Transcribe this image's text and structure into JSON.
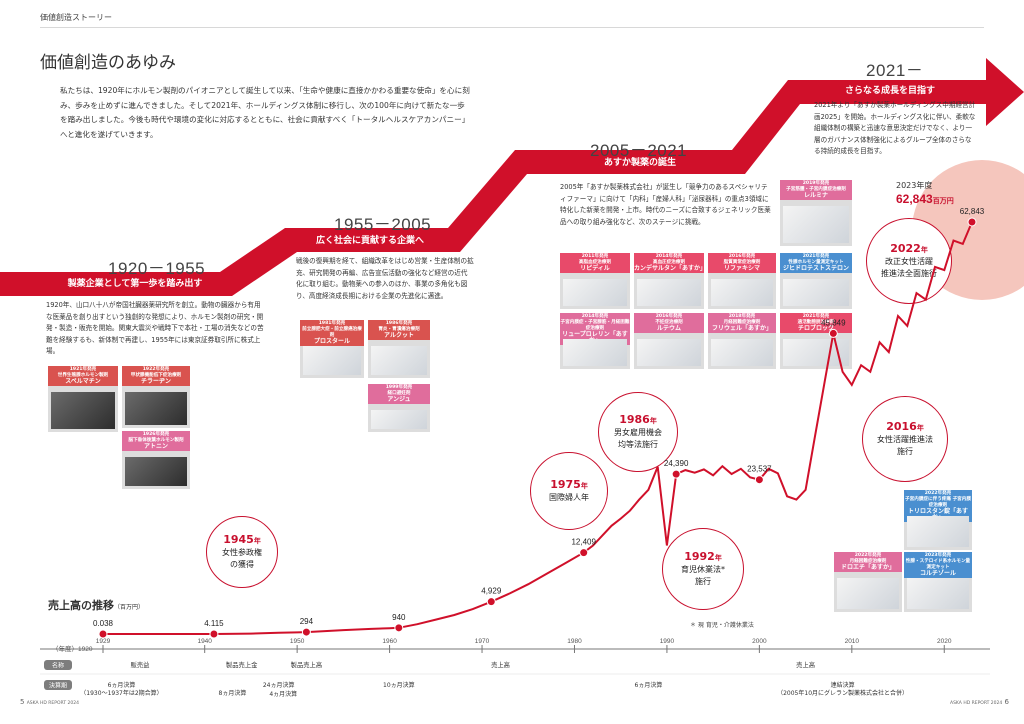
{
  "header": {
    "section": "価値創造ストーリー"
  },
  "title": "価値創造のあゆみ",
  "intro": "私たちは、1920年にホルモン製剤のパイオニアとして誕生して以来、「生命や健康に直接かかわる重要な使命」を心に刻み、歩みを止めずに進んできました。そして2021年、ホールディングス体制に移行し、次の100年に向けて新たな一歩を踏み出しました。今後も時代や環境の変化に対応するとともに、社会に貢献すべく「トータルヘルスケアカンパニー」へと進化を遂げていきます。",
  "eras": [
    {
      "years": "1920－1955",
      "label": "製薬企業として第一歩を踏み出す",
      "text": "1920年、山口八十八が帝国社臓器薬研究所を創立。動物の臓器から有用な医薬品を創り出すという独創的な発想により、ホルモン製剤の研究・開発・製造・販売を開始。関東大震災や戦時下で本社・工場の消失などの苦難を経験するも、新体制で再建し、1955年には東京証券取引所に株式上場。"
    },
    {
      "years": "1955－2005",
      "label": "広く社会に貢献する企業へ",
      "text": "戦後の復興期を経て、組織改革をはじめ営業・生産体制の拡充、研究開発の再編、広告宣伝活動の強化など経営の近代化に取り組む。動物薬への参入のほか、事業の多角化も図り、高度経済成長期における企業の先進化に邁進。"
    },
    {
      "years": "2005－2021",
      "label": "あすか製薬の誕生",
      "text": "2005年「あすか製薬株式会社」が誕生し「競争力のあるスペシャリティファーマ」に向けて「内科」「産婦人科」「泌尿器科」の重点3領域に特化した新薬を開発・上市。時代のニーズに合致するジェネリック医薬品への取り組み強化など、次のステージに挑戦。"
    },
    {
      "years": "2021－",
      "label": "さらなる成長を目指す",
      "text": "2021年より「あすか製薬ホールディングス中期経営計画2025」を開始。ホールディングス化に伴い、柔軟な組織体制の構築と迅速な意思決定だけでなく、より一層のガバナンス体制強化によるグループ全体のさらなる持続的成長を目指す。"
    }
  ],
  "products": [
    {
      "year": "1921年発売",
      "line": "世界生殖腺ホルモン製剤",
      "name": "スペルマチン",
      "color": "#d9534f"
    },
    {
      "year": "1922年発売",
      "line": "甲状腺機能低下症治療剤",
      "name": "チラーヂン",
      "color": "#d9534f"
    },
    {
      "year": "1926年発売",
      "line": "脳下垂体後葉ホルモン製剤",
      "name": "アトニン",
      "color": "#e06d9c"
    },
    {
      "year": "1981年発売",
      "line": "前立腺肥大症・前立腺癌治療剤",
      "name": "プロスタール",
      "color": "#d9534f"
    },
    {
      "year": "1986年発売",
      "line": "胃炎・胃潰瘍治療剤",
      "name": "アルクット",
      "color": "#d9534f"
    },
    {
      "year": "1999年発売",
      "line": "経口避妊剤",
      "name": "アンジュ",
      "color": "#e06d9c"
    },
    {
      "year": "2011年発売",
      "line": "高脂血症治療剤",
      "name": "リピディル",
      "color": "#e84a6a"
    },
    {
      "year": "2014年発売",
      "line": "高血圧症治療剤",
      "name": "カンデサルタン「あすか」",
      "color": "#e84a6a"
    },
    {
      "year": "2016年発売",
      "line": "脂質異常症治療剤",
      "name": "リファキシマ",
      "color": "#e84a6a"
    },
    {
      "year": "2019年発売",
      "line": "子宮筋腫・子宮内膜症治療剤",
      "name": "レルミナ",
      "color": "#e06d9c"
    },
    {
      "year": "2021年発売",
      "line": "性腺ホルモン量測定キット",
      "name": "ジヒドロテストステロン",
      "color": "#4a8fd0"
    },
    {
      "year": "2014年発売",
      "line": "子宮内膜症・子宮腺筋・月経困難症治療剤",
      "name": "リュープロレリン「あすか」",
      "color": "#e06d9c"
    },
    {
      "year": "2016年発売",
      "line": "不妊症治療剤",
      "name": "ルテウム",
      "color": "#e06d9c"
    },
    {
      "year": "2018年発売",
      "line": "月経困難症治療剤",
      "name": "フリウェル「あすか」",
      "color": "#e06d9c"
    },
    {
      "year": "2021年発売",
      "line": "過活動膀胱治療剤",
      "name": "チロブロック",
      "color": "#e84a6a"
    },
    {
      "year": "2022年発売",
      "line": "月経困難症治療剤",
      "name": "ドロエチ「あすか」",
      "color": "#e06d9c"
    },
    {
      "year": "2022年発売",
      "line": "子宮内膜症に伴う疼痛 子宮内膜症治療剤",
      "name": "トリロスタン錠「あすか」",
      "color": "#4a8fd0"
    },
    {
      "year": "2023年発売",
      "line": "性腺・ステロイド系ホルモン量測定キット",
      "name": "コルチゾール",
      "color": "#4a8fd0"
    }
  ],
  "events": [
    {
      "year": "1945",
      "suffix": "年",
      "lines": [
        "女性参政権",
        "の獲得"
      ]
    },
    {
      "year": "1975",
      "suffix": "年",
      "lines": [
        "国際婦人年"
      ]
    },
    {
      "year": "1986",
      "suffix": "年",
      "lines": [
        "男女雇用機会",
        "均等法施行"
      ]
    },
    {
      "year": "1992",
      "suffix": "年",
      "lines": [
        "育児休業法*",
        "施行"
      ]
    },
    {
      "year": "2016",
      "suffix": "年",
      "lines": [
        "女性活躍推進法",
        "施行"
      ]
    },
    {
      "year": "2022",
      "suffix": "年",
      "lines": [
        "改正女性活躍",
        "推進法全面施行"
      ]
    }
  ],
  "footnote": "＊ 現 育児・介護休業法",
  "chart_title": "売上高の推移",
  "chart_unit": "（百万円）",
  "latest": {
    "label": "2023年度",
    "value": "62,843",
    "unit": "百万円"
  },
  "chart_data": {
    "type": "line",
    "title": "売上高の推移",
    "ylabel": "百万円",
    "xlim": [
      1920,
      2023
    ],
    "x_ticks": [
      "1929",
      "1940",
      "1950",
      "1960",
      "1970",
      "1980",
      "1990",
      "2000",
      "2010",
      "2020"
    ],
    "x_axis_prefix": "（年度）1920",
    "labeled_points": [
      {
        "x": 1929,
        "y": 0.038,
        "label": "0.038"
      },
      {
        "x": 1941,
        "y": 4.115,
        "label": "4.115"
      },
      {
        "x": 1951,
        "y": 294,
        "label": "294"
      },
      {
        "x": 1961,
        "y": 940,
        "label": "940"
      },
      {
        "x": 1971,
        "y": 4929,
        "label": "4,929"
      },
      {
        "x": 1981,
        "y": 12409,
        "label": "12,409"
      },
      {
        "x": 1991,
        "y": 24390,
        "label": "24,390"
      },
      {
        "x": 2000,
        "y": 23537,
        "label": "23,537"
      },
      {
        "x": 2008,
        "y": 45849,
        "label": "45,849"
      },
      {
        "x": 2023,
        "y": 62843,
        "label": "62,843"
      }
    ],
    "series": [
      {
        "x": [
          1929,
          1935,
          1940,
          1941,
          1945,
          1948,
          1950,
          1951,
          1955,
          1958,
          1960,
          1961,
          1963,
          1965,
          1967,
          1969,
          1971,
          1973,
          1975,
          1977,
          1979,
          1981,
          1982,
          1983,
          1984,
          1985,
          1986,
          1987,
          1988,
          1989,
          1990,
          1991,
          1992,
          1993,
          1994,
          1995,
          1996,
          1997,
          1998,
          1999,
          2000,
          2001,
          2002,
          2003,
          2004,
          2005,
          2006,
          2007,
          2008,
          2009,
          2010,
          2011,
          2012,
          2013,
          2014,
          2015,
          2016,
          2017,
          2018,
          2019,
          2020,
          2021,
          2022,
          2023
        ],
        "y": [
          0.038,
          1,
          4,
          4.115,
          60,
          180,
          250,
          294,
          600,
          780,
          880,
          940,
          1500,
          2200,
          2900,
          3800,
          4929,
          6200,
          7600,
          9200,
          10800,
          12409,
          13500,
          15000,
          16500,
          17600,
          18800,
          20500,
          22000,
          25500,
          13500,
          24390,
          25000,
          24600,
          25100,
          24200,
          25600,
          24400,
          25200,
          23900,
          23537,
          25200,
          24500,
          21000,
          20500,
          22000,
          30000,
          38000,
          45849,
          40000,
          38000,
          41000,
          40000,
          44500,
          43000,
          48500,
          47000,
          52000,
          51000,
          56000,
          55500,
          60000,
          59500,
          62843
        ]
      }
    ],
    "bands": {
      "name_row_label": "名称",
      "name_row": [
        {
          "text": "販売益",
          "x": 1933
        },
        {
          "text": "製品売上金",
          "x": 1944
        },
        {
          "text": "製品売上高",
          "x": 1951
        },
        {
          "text": "売上高",
          "x": 1972
        },
        {
          "text": "売上高",
          "x": 2005
        }
      ],
      "period_row_label": "決算期",
      "period_row": [
        {
          "text": "6ヵ月決算",
          "text2": "（1930～1937年は2期合算）",
          "x": 1931
        },
        {
          "text": "8ヵ月決算",
          "x": 1943
        },
        {
          "text": "24ヵ月決算",
          "x": 1948
        },
        {
          "text": "4ヵ月決算",
          "x": 1948.5
        },
        {
          "text": "10ヵ月決算",
          "x": 1961
        },
        {
          "text": "6ヵ月決算",
          "x": 1988
        },
        {
          "text": "連結決算",
          "text2": "（2005年10月にグレラン製薬株式会社と合併）",
          "x": 2009
        }
      ]
    }
  },
  "footer": {
    "left_page": "5",
    "left_brand": "ASKA HD REPORT 2024",
    "right_brand": "ASKA HD REPORT 2024",
    "right_page": "6"
  }
}
